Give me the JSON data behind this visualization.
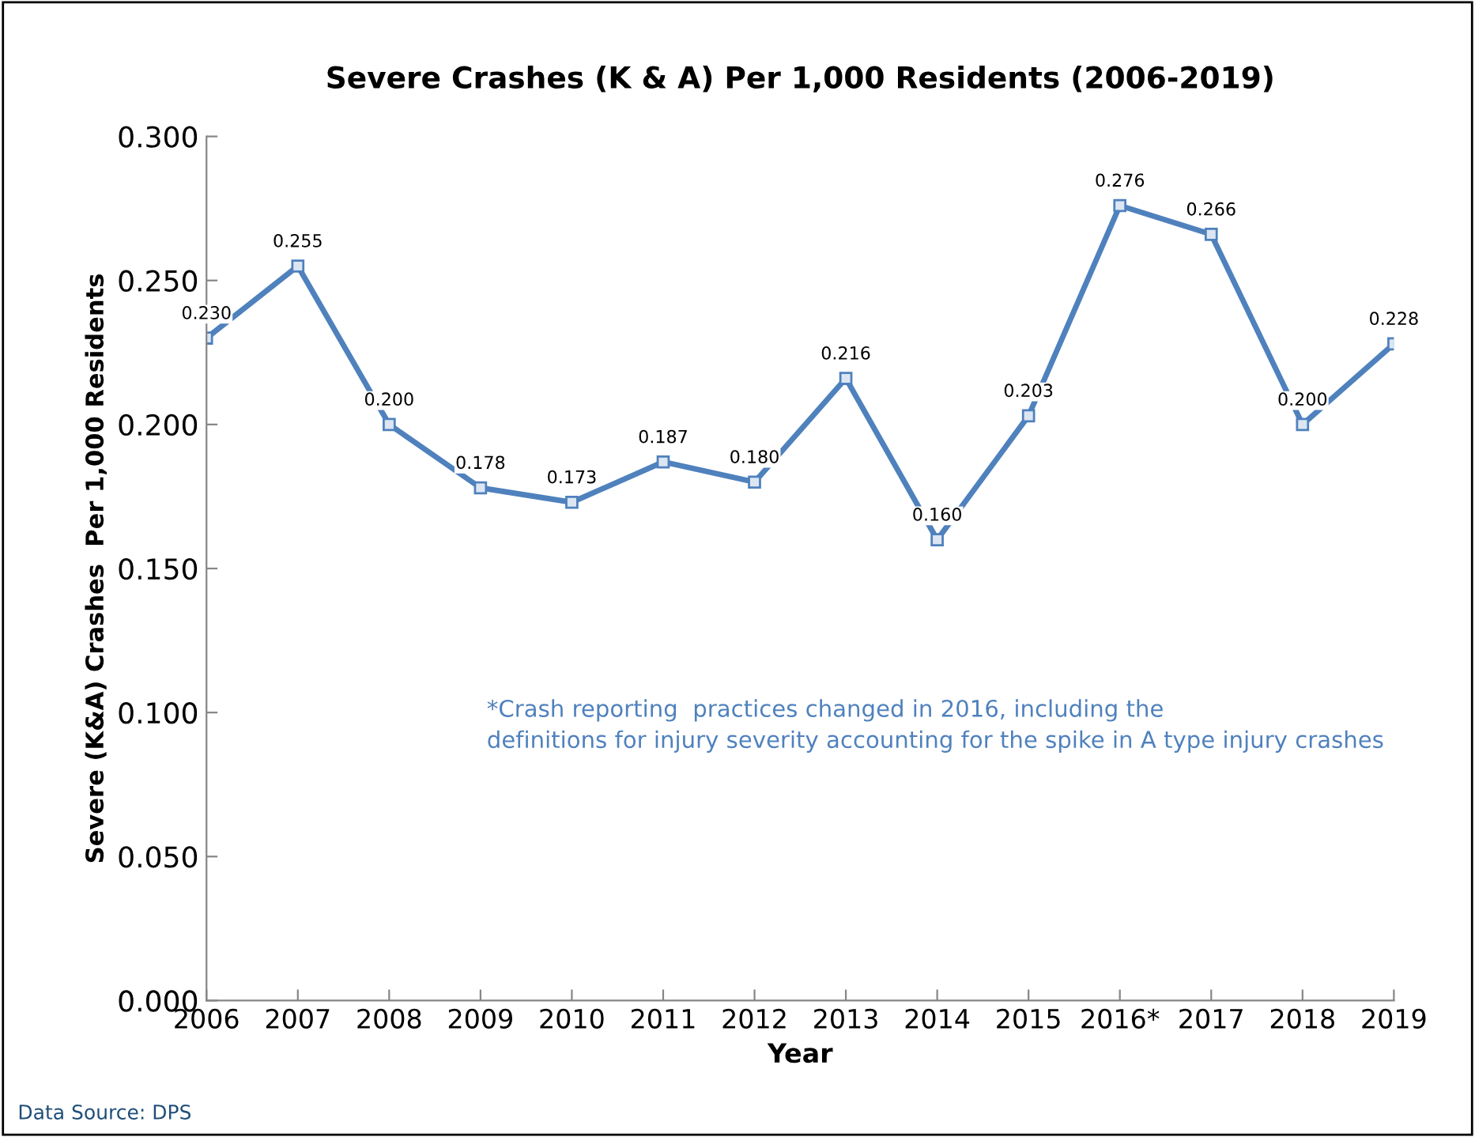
{
  "chart_data": {
    "type": "line",
    "title": "Severe Crashes (K & A) Per 1,000 Residents (2006-2019)",
    "xlabel": "Year",
    "ylabel": "Severe (K&A) Crashes  Per 1,000 Residents",
    "categories": [
      "2006",
      "2007",
      "2008",
      "2009",
      "2010",
      "2011",
      "2012",
      "2013",
      "2014",
      "2015",
      "2016*",
      "2017",
      "2018",
      "2019"
    ],
    "series": [
      {
        "color": "#4f81bd",
        "values": [
          0.23,
          0.255,
          0.2,
          0.178,
          0.173,
          0.187,
          0.18,
          0.216,
          0.16,
          0.203,
          0.276,
          0.266,
          0.2,
          0.228
        ],
        "value_labels": [
          "0.230",
          "0.255",
          "0.200",
          "0.178",
          "0.173",
          "0.187",
          "0.180",
          "0.216",
          "0.160",
          "0.203",
          "0.276",
          "0.266",
          "0.200",
          "0.228"
        ]
      }
    ],
    "ylim": [
      0,
      0.3
    ],
    "yticks": [
      {
        "value": 0,
        "label": "0.000"
      },
      {
        "value": 0.05,
        "label": "0.050"
      },
      {
        "value": 0.1,
        "label": "0.100"
      },
      {
        "value": 0.15,
        "label": "0.150"
      },
      {
        "value": 0.2,
        "label": "0.200"
      },
      {
        "value": 0.25,
        "label": "0.250"
      },
      {
        "value": 0.3,
        "label": "0.300"
      }
    ],
    "marker": "square",
    "line_style": "solid",
    "grid": false,
    "legend": false,
    "annotations": [
      "*Crash reporting  practices changed in 2016, including the\ndefinitions for injury severity accounting for the spike in A type injury crashes",
      "Data Source: DPS"
    ]
  }
}
